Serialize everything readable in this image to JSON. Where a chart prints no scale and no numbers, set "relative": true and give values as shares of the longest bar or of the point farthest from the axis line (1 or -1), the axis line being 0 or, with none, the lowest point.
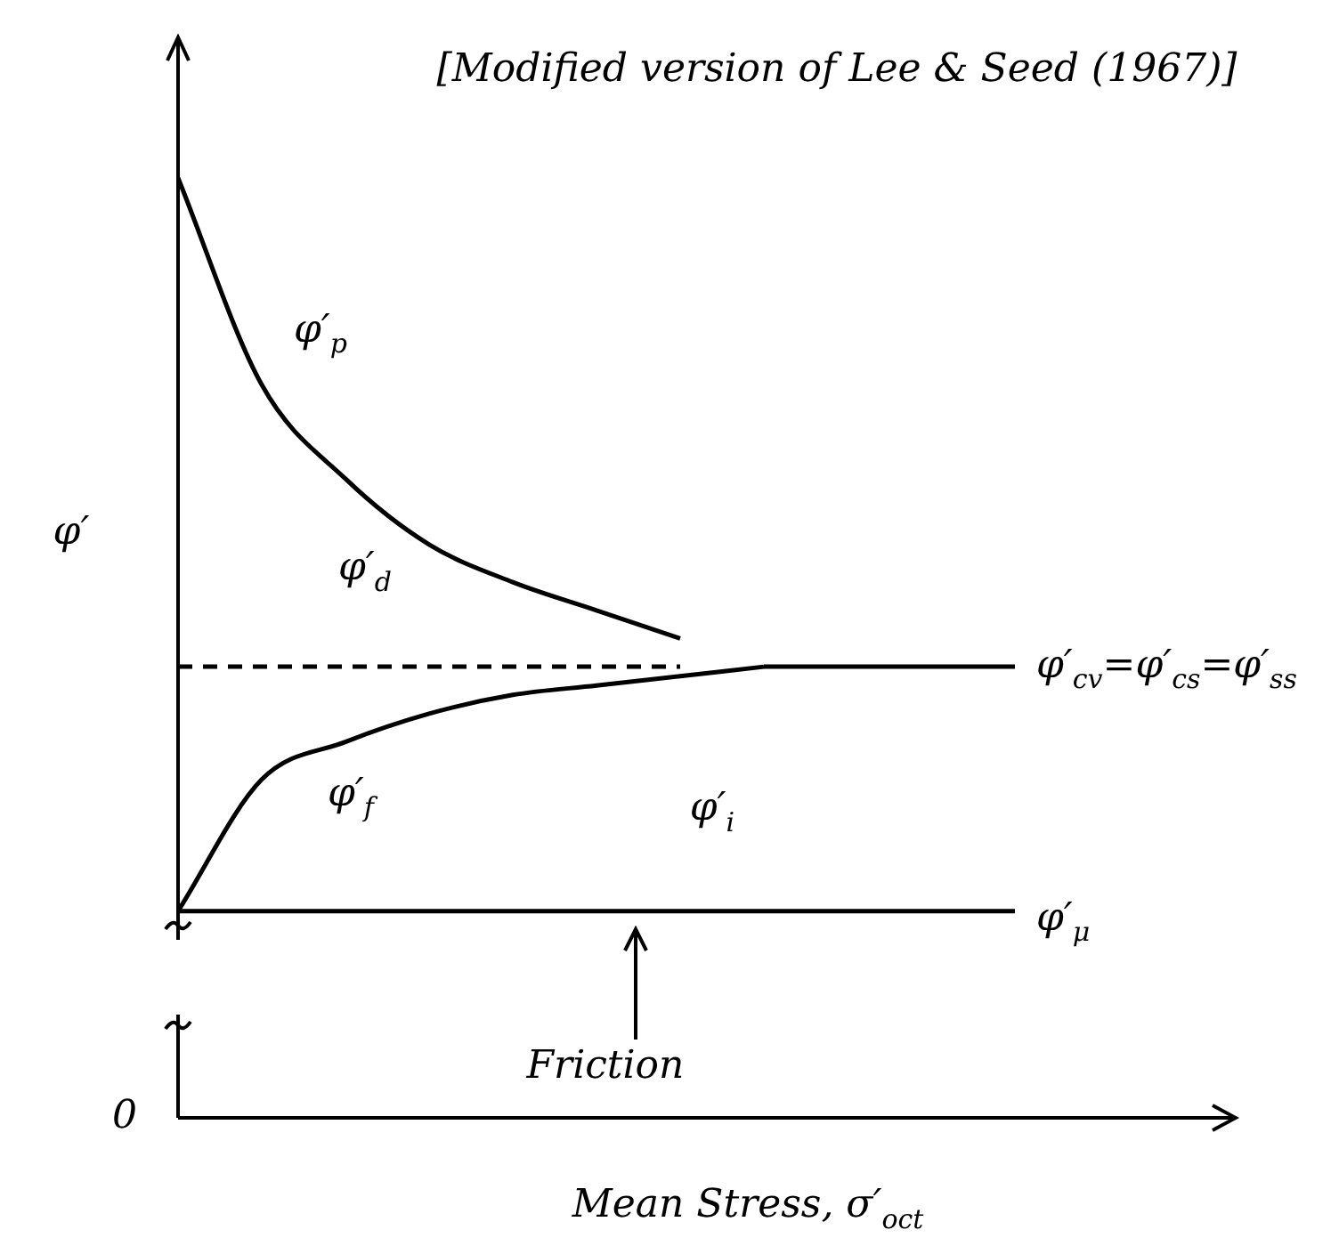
{
  "chart_data": {
    "type": "line",
    "relative": true,
    "xlabel": "Mean Stress, σ′$_{oct}$",
    "ylabel": "φ′",
    "legend": false,
    "marker": "none",
    "annotations": [
      "[Modified version of Lee & Seed (1967)]",
      "φ′$_{d}$",
      "φ′$_{i}$",
      "Friction",
      "0"
    ],
    "categories": [
      null,
      null,
      null,
      null,
      null,
      null,
      null,
      null,
      null,
      null,
      null,
      null,
      null
    ],
    "series": [
      {
        "name": "φ′$_{p}$",
        "color": "#000000",
        "values": [
          1.0,
          0.78,
          0.68,
          0.61,
          0.57,
          0.54,
          0.51,
          null,
          null,
          null,
          null,
          null,
          null
        ]
      },
      {
        "name": "φ′$_{f}$",
        "color": "#000000",
        "values": [
          0.22,
          0.36,
          0.4,
          0.43,
          0.45,
          0.46,
          0.47,
          0.48,
          null,
          null,
          null,
          null,
          null
        ]
      },
      {
        "name": "φ′$_{cv}$=φ′$_{cs}$=φ′$_{ss}$",
        "color": "#000000",
        "values": [
          null,
          null,
          null,
          null,
          null,
          null,
          null,
          0.48,
          0.48,
          0.48,
          0.48,
          null,
          null
        ]
      },
      {
        "color": "#000000",
        "line_style": "dashed",
        "values": [
          0.48,
          0.48,
          0.48,
          0.48,
          0.48,
          0.48,
          0.48,
          null,
          null,
          null,
          null,
          null,
          null
        ]
      },
      {
        "name": "φ′$_{μ}$",
        "color": "#000000",
        "values": [
          0.22,
          0.22,
          0.22,
          0.22,
          0.22,
          0.22,
          0.22,
          0.22,
          0.22,
          0.22,
          0.22,
          null,
          null
        ]
      }
    ]
  }
}
